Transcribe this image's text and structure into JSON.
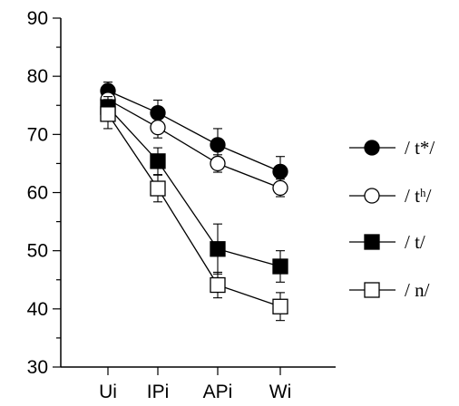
{
  "chart_data": {
    "type": "line",
    "categories": [
      "Ui",
      "IPi",
      "APi",
      "Wi"
    ],
    "ylim": [
      30,
      90
    ],
    "yticks": [
      30,
      40,
      50,
      60,
      70,
      80,
      90
    ],
    "grid": false,
    "legend_position": "right",
    "series": [
      {
        "name": "/ t*/",
        "marker": "filled-circle",
        "values": [
          77.5,
          73.7,
          68.2,
          63.6
        ],
        "errors": [
          1.5,
          2.2,
          2.8,
          2.6
        ]
      },
      {
        "name": "/ tʰ/",
        "marker": "open-circle",
        "values": [
          76.0,
          71.2,
          65.0,
          60.8
        ],
        "errors": [
          1.5,
          1.8,
          1.5,
          1.5
        ]
      },
      {
        "name": "/ t/",
        "marker": "filled-square",
        "values": [
          74.7,
          65.4,
          50.3,
          47.3
        ],
        "errors": [
          1.8,
          2.3,
          4.3,
          2.7
        ]
      },
      {
        "name": "/ n/",
        "marker": "open-square",
        "values": [
          73.5,
          60.7,
          44.1,
          40.4
        ],
        "errors": [
          2.5,
          2.3,
          2.2,
          2.4
        ]
      }
    ]
  }
}
